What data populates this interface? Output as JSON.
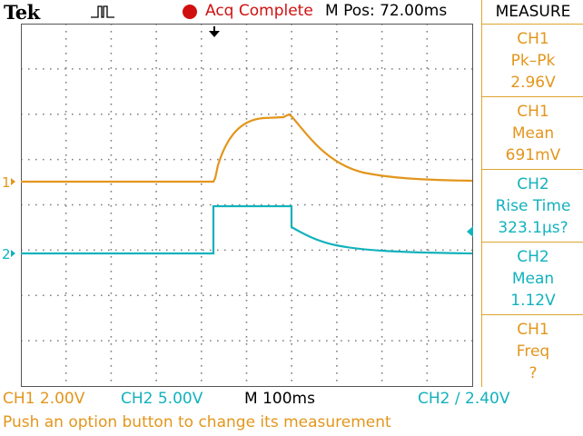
{
  "header": {
    "brand": "Tek",
    "acq_status": "Acq Complete",
    "m_pos": "M Pos: 72.00ms"
  },
  "sidebar": {
    "title": "MEASURE",
    "measurements": [
      {
        "channel": "CH1",
        "type": "Pk–Pk",
        "value": "2.96V"
      },
      {
        "channel": "CH1",
        "type": "Mean",
        "value": "691mV"
      },
      {
        "channel": "CH2",
        "type": "Rise Time",
        "value": "323.1µs?"
      },
      {
        "channel": "CH2",
        "type": "Mean",
        "value": "1.12V"
      },
      {
        "channel": "CH1",
        "type": "Freq",
        "value": "?"
      }
    ]
  },
  "status": {
    "ch1_scale": "CH1  2.00V",
    "ch2_scale": "CH2  5.00V",
    "timebase": "M 100ms",
    "trigger": "CH2 ∕ 2.40V"
  },
  "message": "Push an option button to change its measurement",
  "markers": {
    "ch1": "1",
    "ch2": "2"
  },
  "colors": {
    "ch1": "#e3961c",
    "ch2": "#12b2bd",
    "acq": "#d01010",
    "grid": "#808080"
  }
}
